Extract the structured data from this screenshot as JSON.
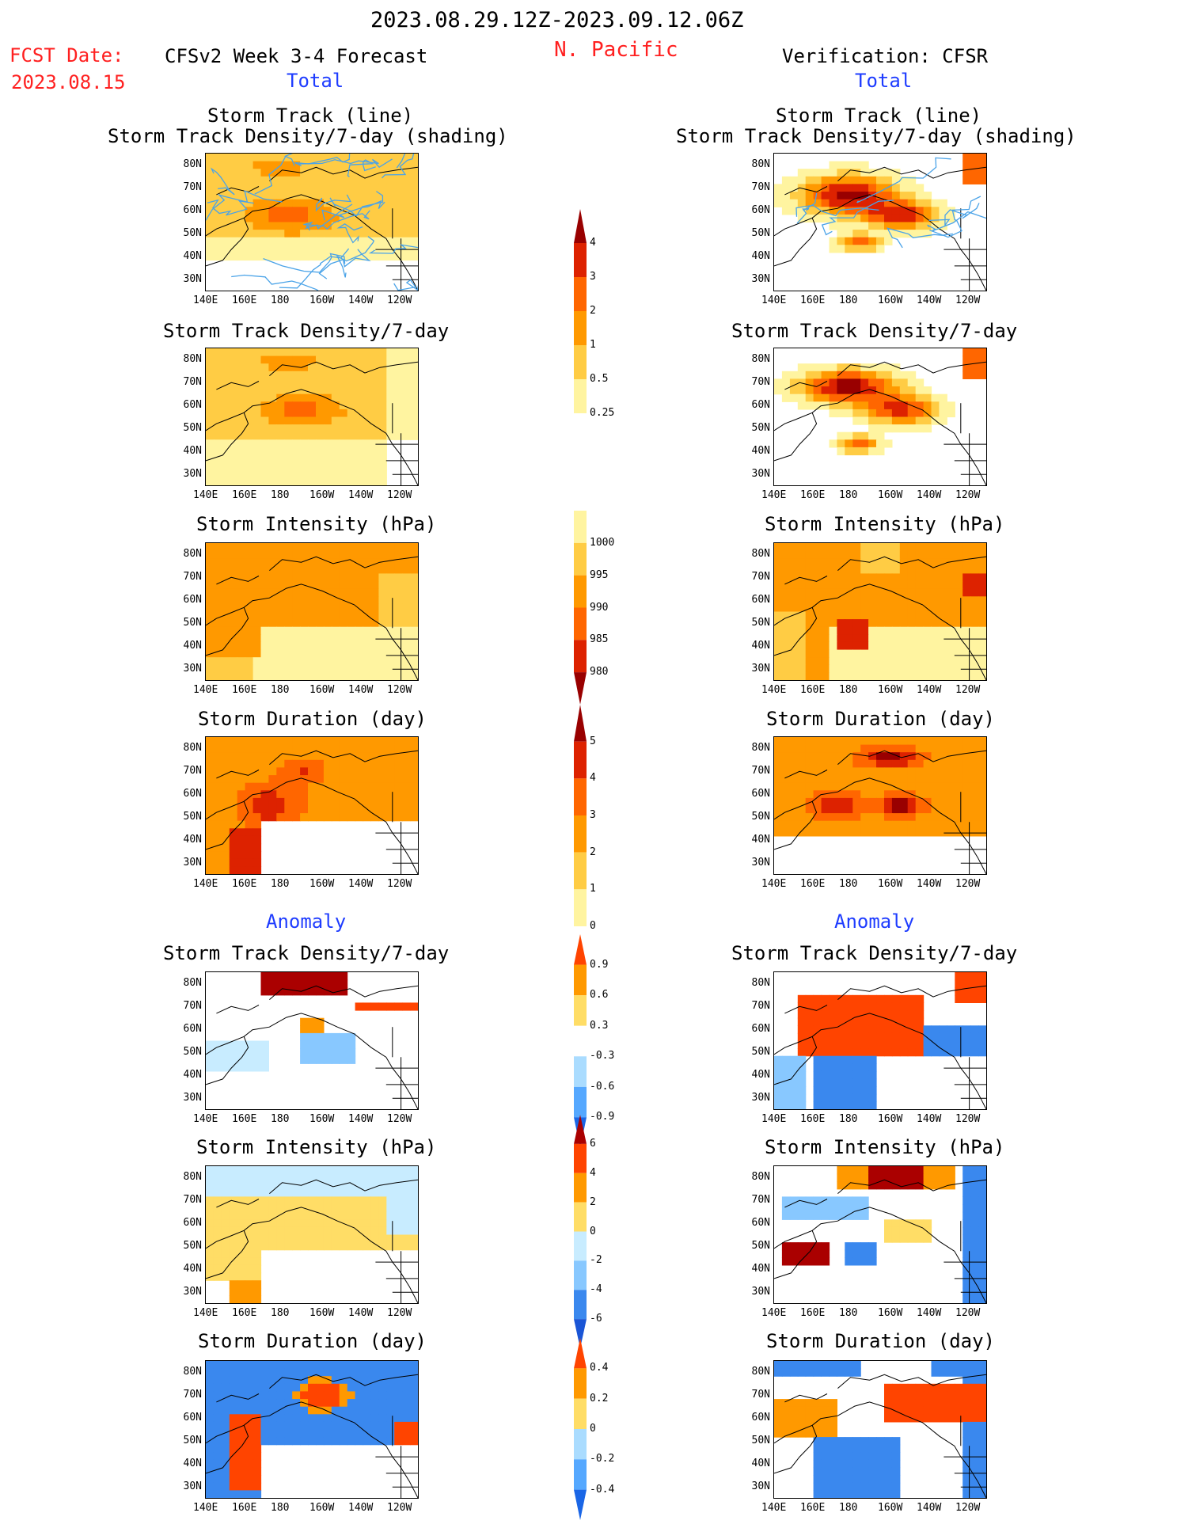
{
  "header": {
    "period": "2023.08.29.12Z-2023.09.12.06Z",
    "fcst_label": "FCST Date:",
    "fcst_date": "2023.08.15",
    "forecast_title": "CFSv2 Week 3-4 Forecast",
    "region": "N. Pacific",
    "verification_title": "Verification: CFSR",
    "total_label": "Total",
    "anomaly_label": "Anomaly"
  },
  "panel_titles": {
    "track_line": "Storm Track (line)",
    "track_shading": "Storm Track Density/7-day (shading)",
    "track_density": "Storm Track Density/7-day",
    "intensity": "Storm Intensity (hPa)",
    "duration": "Storm Duration (day)"
  },
  "axes": {
    "lat_labels": [
      "80N",
      "70N",
      "60N",
      "50N",
      "40N",
      "30N"
    ],
    "lon_labels": [
      "140E",
      "160E",
      "180",
      "160W",
      "140W",
      "120W"
    ]
  },
  "colorbars": {
    "density_total": {
      "ticks": [
        "4",
        "3",
        "2",
        "1",
        "0.5",
        "0.25"
      ],
      "colors": [
        "#990000",
        "#dd2200",
        "#ff6600",
        "#ff9900",
        "#ffcc44",
        "#fff4a0"
      ]
    },
    "intensity_total": {
      "ticks": [
        "1000",
        "995",
        "990",
        "985",
        "980"
      ],
      "colors": [
        "#fff4a0",
        "#ffcc44",
        "#ff9900",
        "#ff6600",
        "#dd2200",
        "#990000"
      ]
    },
    "duration_total": {
      "ticks": [
        "5",
        "4",
        "3",
        "2",
        "1",
        "0"
      ],
      "colors": [
        "#990000",
        "#dd2200",
        "#ff6600",
        "#ff9900",
        "#ffcc44",
        "#fff4a0"
      ]
    },
    "density_anom": {
      "ticks": [
        "0.9",
        "0.6",
        "0.3",
        "-0.3",
        "-0.6",
        "-0.9"
      ],
      "colors": [
        "#ff4400",
        "#ff9900",
        "#ffdd66",
        "#ffffff",
        "#aadcff",
        "#55a8ff",
        "#1a66e6"
      ]
    },
    "intensity_anom": {
      "ticks": [
        "6",
        "4",
        "2",
        "0",
        "-2",
        "-4",
        "-6"
      ],
      "colors": [
        "#aa0000",
        "#ff4400",
        "#ff9900",
        "#ffdd66",
        "#c8ecff",
        "#88c8ff",
        "#3a88ee",
        "#1a55d6"
      ]
    },
    "duration_anom": {
      "ticks": [
        "0.4",
        "0.2",
        "0",
        "-0.2",
        "-0.4"
      ],
      "colors": [
        "#ff4400",
        "#ff9900",
        "#ffdd66",
        "#aadcff",
        "#55a8ff",
        "#1a66e6"
      ]
    }
  },
  "panels": [
    {
      "id": "fc-track",
      "title_key": "track",
      "field": "fc_track"
    },
    {
      "id": "fc-density",
      "title_key": "track_density",
      "field": "fc_density"
    },
    {
      "id": "fc-intensity",
      "title_key": "intensity",
      "field": "fc_intensity"
    },
    {
      "id": "fc-duration",
      "title_key": "duration",
      "field": "fc_duration"
    },
    {
      "id": "fc-density-anom",
      "title_key": "track_density",
      "field": "fc_density_anom"
    },
    {
      "id": "fc-intensity-anom",
      "title_key": "intensity",
      "field": "fc_intensity_anom"
    },
    {
      "id": "fc-duration-anom",
      "title_key": "duration",
      "field": "fc_duration_anom"
    },
    {
      "id": "vf-track",
      "title_key": "track",
      "field": "vf_track"
    },
    {
      "id": "vf-density",
      "title_key": "track_density",
      "field": "vf_density"
    },
    {
      "id": "vf-intensity",
      "title_key": "intensity",
      "field": "vf_intensity"
    },
    {
      "id": "vf-duration",
      "title_key": "duration",
      "field": "vf_duration"
    },
    {
      "id": "vf-density-anom",
      "title_key": "track_density",
      "field": "vf_density_anom"
    },
    {
      "id": "vf-intensity-anom",
      "title_key": "intensity",
      "field": "vf_intensity_anom"
    },
    {
      "id": "vf-duration-anom",
      "title_key": "duration",
      "field": "vf_duration_anom"
    }
  ]
}
